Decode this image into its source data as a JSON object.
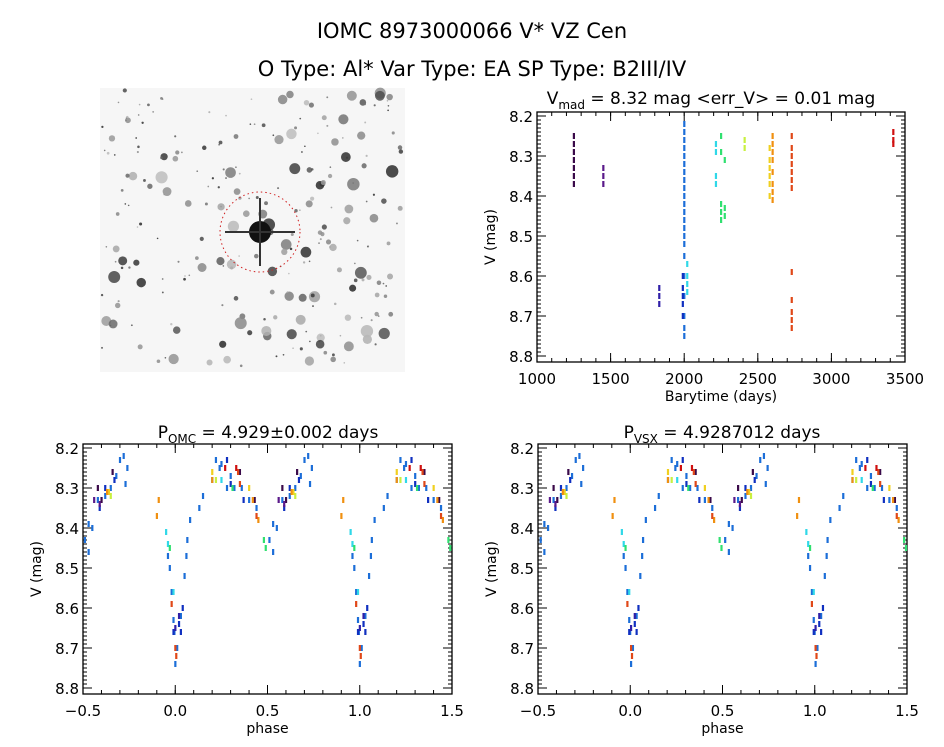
{
  "header": {
    "title": "IOMC 8973000066   V* VZ Cen",
    "subtitle": "O Type: Al*   Var Type: EA   SP Type: B2III/IV"
  },
  "colors": [
    "#3a0a4a",
    "#5a1a8a",
    "#3020a8",
    "#1c6ed8",
    "#1030c0",
    "#30d8e8",
    "#30e070",
    "#c8f040",
    "#f0d020",
    "#f09010",
    "#e04818",
    "#d01010"
  ],
  "image_panel": {
    "marker": "red dashed circle around target star"
  },
  "chart_data": [
    {
      "type": "scatter",
      "title_main": "V",
      "title_sub": "mad",
      "title_rest": " = 8.32 mag <err_V> = 0.01 mag",
      "xlabel": "Barytime (days)",
      "ylabel": "V (mag)",
      "xlim": [
        1000,
        3500
      ],
      "ylim": [
        8.815,
        8.19
      ],
      "xticks": [
        "1000",
        "1500",
        "2000",
        "2500",
        "3000",
        "3500"
      ],
      "yticks": [
        "8.2",
        "8.3",
        "8.4",
        "8.5",
        "8.6",
        "8.7",
        "8.8"
      ],
      "groups": [
        {
          "t": 1250,
          "color_index": 0,
          "mags": [
            8.25,
            8.27,
            8.29,
            8.31,
            8.33,
            8.35,
            8.37
          ]
        },
        {
          "t": 1450,
          "color_index": 1,
          "mags": [
            8.33,
            8.35,
            8.37
          ]
        },
        {
          "t": 1830,
          "color_index": 2,
          "mags": [
            8.63,
            8.65,
            8.67
          ]
        },
        {
          "t": 2000,
          "color_index": 3,
          "mags": [
            8.22,
            8.24,
            8.26,
            8.28,
            8.3,
            8.32,
            8.34,
            8.36,
            8.38,
            8.4,
            8.42,
            8.44,
            8.46,
            8.48,
            8.5,
            8.52,
            8.55,
            8.6,
            8.65,
            8.7,
            8.73,
            8.75
          ]
        },
        {
          "t": 1990,
          "color_index": 4,
          "mags": [
            8.6,
            8.63,
            8.65,
            8.67,
            8.7
          ]
        },
        {
          "t": 2020,
          "color_index": 5,
          "mags": [
            8.57,
            8.6,
            8.62,
            8.64
          ]
        },
        {
          "t": 2215,
          "color_index": 5,
          "mags": [
            8.27,
            8.29,
            8.35,
            8.37
          ]
        },
        {
          "t": 2250,
          "color_index": 6,
          "mags": [
            8.25,
            8.29,
            8.42,
            8.44,
            8.46
          ]
        },
        {
          "t": 2275,
          "color_index": 6,
          "mags": [
            8.31,
            8.43,
            8.45
          ]
        },
        {
          "t": 2410,
          "color_index": 7,
          "mags": [
            8.26,
            8.28
          ]
        },
        {
          "t": 2580,
          "color_index": 8,
          "mags": [
            8.28,
            8.31,
            8.33,
            8.35,
            8.37,
            8.4
          ]
        },
        {
          "t": 2600,
          "color_index": 9,
          "mags": [
            8.25,
            8.27,
            8.29,
            8.31,
            8.34,
            8.37,
            8.39,
            8.41
          ]
        },
        {
          "t": 2730,
          "color_index": 10,
          "mags": [
            8.25,
            8.28,
            8.3,
            8.32,
            8.34,
            8.36,
            8.38,
            8.59,
            8.66,
            8.69,
            8.71,
            8.73
          ]
        },
        {
          "t": 3420,
          "color_index": 11,
          "mags": [
            8.24,
            8.26,
            8.27
          ]
        }
      ]
    },
    {
      "type": "scatter",
      "title_main": "P",
      "title_sub": "OMC",
      "title_rest": " = 4.929±0.002 days",
      "xlabel": "phase",
      "ylabel": "V (mag)",
      "xlim": [
        -0.5,
        1.5
      ],
      "ylim": [
        8.815,
        8.19
      ],
      "xticks": [
        "-0.5",
        "0.0",
        "0.5",
        "1.0",
        "1.5"
      ],
      "yticks": [
        "8.2",
        "8.3",
        "8.4",
        "8.5",
        "8.6",
        "8.7",
        "8.8"
      ]
    },
    {
      "type": "scatter",
      "title_main": "P",
      "title_sub": "VSX",
      "title_rest": " = 4.9287012 days",
      "xlabel": "phase",
      "ylabel": "V (mag)",
      "xlim": [
        -0.5,
        1.5
      ],
      "ylim": [
        8.815,
        8.19
      ],
      "xticks": [
        "-0.5",
        "0.0",
        "0.5",
        "1.0",
        "1.5"
      ],
      "yticks": [
        "8.2",
        "8.3",
        "8.4",
        "8.5",
        "8.6",
        "8.7",
        "8.8"
      ]
    }
  ],
  "phase_points": [
    [
      0.0,
      8.74,
      3
    ],
    [
      0.01,
      8.7,
      3
    ],
    [
      0.03,
      8.62,
      3
    ],
    [
      0.05,
      8.52,
      3
    ],
    [
      0.06,
      8.47,
      3
    ],
    [
      0.065,
      8.43,
      3
    ],
    [
      0.13,
      8.35,
      3
    ],
    [
      0.15,
      8.32,
      3
    ],
    [
      0.2,
      8.28,
      3
    ],
    [
      0.22,
      8.23,
      3
    ],
    [
      0.24,
      8.25,
      3
    ],
    [
      0.3,
      8.27,
      3
    ],
    [
      0.32,
      8.3,
      3
    ],
    [
      0.36,
      8.3,
      3
    ],
    [
      0.4,
      8.33,
      3
    ],
    [
      0.44,
      8.35,
      3
    ],
    [
      0.51,
      8.43,
      3
    ],
    [
      0.53,
      8.39,
      3
    ],
    [
      0.55,
      8.4,
      3
    ],
    [
      0.58,
      8.33,
      3
    ],
    [
      0.62,
      8.32,
      3
    ],
    [
      0.65,
      8.3,
      3
    ],
    [
      0.68,
      8.27,
      3
    ],
    [
      0.7,
      8.23,
      3
    ],
    [
      0.72,
      8.22,
      3
    ],
    [
      0.74,
      8.25,
      3
    ],
    [
      0.96,
      8.47,
      3
    ],
    [
      0.97,
      8.5,
      3
    ],
    [
      0.98,
      8.56,
      3
    ],
    [
      0.99,
      8.63,
      3
    ],
    [
      0.995,
      8.66,
      3
    ],
    [
      0.53,
      8.46,
      3
    ],
    [
      0.08,
      8.38,
      3
    ],
    [
      0.25,
      8.24,
      3
    ],
    [
      0.28,
      8.3,
      3
    ],
    [
      0.73,
      8.29,
      3
    ],
    [
      0.99,
      8.66,
      4
    ],
    [
      0.02,
      8.64,
      4
    ],
    [
      0.03,
      8.66,
      4
    ],
    [
      0.04,
      8.6,
      4
    ],
    [
      0.28,
      8.23,
      4
    ],
    [
      0.3,
      8.29,
      4
    ],
    [
      0.37,
      8.33,
      4
    ],
    [
      0.62,
      8.3,
      4
    ],
    [
      0.67,
      8.28,
      4
    ],
    [
      0.59,
      8.35,
      4
    ],
    [
      0.58,
      8.3,
      0
    ],
    [
      0.6,
      8.33,
      0
    ],
    [
      0.35,
      8.26,
      0
    ],
    [
      0.43,
      8.33,
      0
    ],
    [
      0.66,
      8.26,
      0
    ],
    [
      0.59,
      8.34,
      1
    ],
    [
      0.56,
      8.33,
      1
    ],
    [
      0.0,
      8.65,
      2
    ],
    [
      0.02,
      8.62,
      2
    ],
    [
      0.96,
      8.44,
      5
    ],
    [
      0.95,
      8.41,
      5
    ],
    [
      0.25,
      8.28,
      5
    ],
    [
      0.99,
      8.56,
      5
    ],
    [
      0.48,
      8.43,
      6
    ],
    [
      0.49,
      8.45,
      6
    ],
    [
      0.31,
      8.3,
      6
    ],
    [
      0.97,
      8.45,
      6
    ],
    [
      0.22,
      8.28,
      7
    ],
    [
      0.65,
      8.32,
      7
    ],
    [
      0.2,
      8.26,
      8
    ],
    [
      0.64,
      8.31,
      8
    ],
    [
      0.4,
      8.3,
      8
    ],
    [
      0.9,
      8.37,
      9
    ],
    [
      0.91,
      8.33,
      9
    ],
    [
      0.2,
      8.28,
      9
    ],
    [
      0.63,
      8.31,
      9
    ],
    [
      0.42,
      8.33,
      9
    ],
    [
      0.45,
      8.38,
      9
    ],
    [
      0.0,
      8.7,
      10
    ],
    [
      0.005,
      8.72,
      10
    ],
    [
      0.98,
      8.59,
      10
    ],
    [
      0.34,
      8.26,
      10
    ],
    [
      0.35,
      8.29,
      10
    ],
    [
      0.44,
      8.37,
      10
    ],
    [
      0.27,
      8.25,
      11
    ],
    [
      0.33,
      8.25,
      11
    ]
  ]
}
